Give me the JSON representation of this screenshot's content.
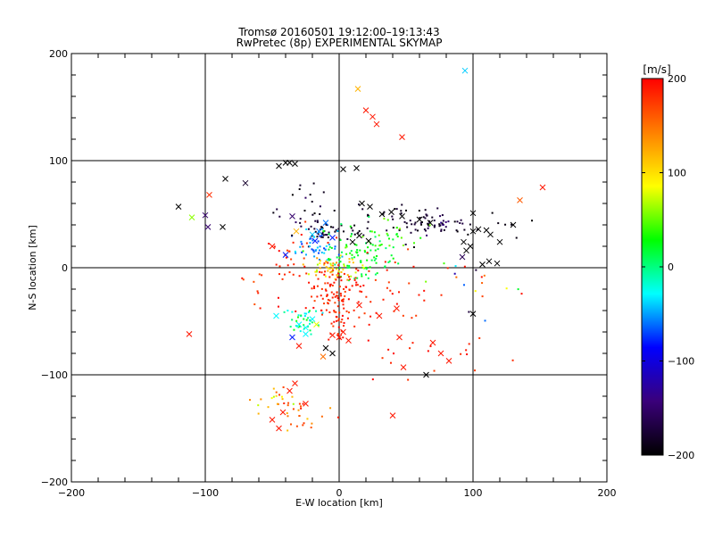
{
  "chart_data": {
    "type": "scatter",
    "title": "Tromsø 20160501 19:12:00–19:13:43",
    "subtitle": "RwPretec (8p) EXPERIMENTAL SKYMAP",
    "xlabel": "E-W location [km]",
    "ylabel": "N-S location [km]",
    "xlim": [
      -200,
      200
    ],
    "ylim": [
      -200,
      200
    ],
    "x_ticks": [
      -200,
      -100,
      0,
      100,
      200
    ],
    "y_ticks": [
      -200,
      -100,
      0,
      100,
      200
    ],
    "x_tick_labels": [
      "−200",
      "−100",
      "0",
      "100",
      "200"
    ],
    "y_tick_labels": [
      "−200",
      "−100",
      "0",
      "100",
      "200"
    ],
    "grid": true,
    "colorbar": {
      "label": "[m/s]",
      "range": [
        -200,
        200
      ],
      "ticks": [
        200,
        100,
        0,
        -100,
        -200
      ],
      "tick_labels": [
        "200",
        "100",
        "0",
        "−100",
        "−200"
      ],
      "colormap": [
        "#000000",
        "#3a007a",
        "#0000ff",
        "#00ffff",
        "#00ff00",
        "#ffff00",
        "#ff8000",
        "#ff0000"
      ]
    },
    "markers": {
      "x": "large-cross",
      "dot": "small-dot"
    },
    "crosses": [
      [
        94,
        184,
        -40
      ],
      [
        14,
        167,
        120
      ],
      [
        20,
        147,
        190
      ],
      [
        25,
        141,
        190
      ],
      [
        28,
        134,
        190
      ],
      [
        47,
        122,
        190
      ],
      [
        -40,
        98,
        -200
      ],
      [
        -37,
        98,
        -200
      ],
      [
        -45,
        95,
        -200
      ],
      [
        -33,
        97,
        -200
      ],
      [
        3,
        92,
        -200
      ],
      [
        13,
        93,
        -200
      ],
      [
        -85,
        83,
        -200
      ],
      [
        -70,
        79,
        -180
      ],
      [
        -97,
        68,
        180
      ],
      [
        -120,
        57,
        -200
      ],
      [
        -100,
        49,
        -150
      ],
      [
        -110,
        47,
        60
      ],
      [
        -98,
        38,
        -150
      ],
      [
        -87,
        38,
        -200
      ],
      [
        -35,
        48,
        -150
      ],
      [
        152,
        75,
        190
      ],
      [
        135,
        63,
        160
      ],
      [
        130,
        40,
        -200
      ],
      [
        100,
        51,
        -200
      ],
      [
        104,
        36,
        -200
      ],
      [
        100,
        34,
        -200
      ],
      [
        110,
        35,
        -200
      ],
      [
        113,
        31,
        -200
      ],
      [
        120,
        24,
        -200
      ],
      [
        93,
        24,
        -200
      ],
      [
        98,
        20,
        -200
      ],
      [
        95,
        16,
        -200
      ],
      [
        92,
        10,
        -160
      ],
      [
        112,
        6,
        -200
      ],
      [
        118,
        4,
        -200
      ],
      [
        107,
        3,
        -200
      ],
      [
        -50,
        20,
        190
      ],
      [
        -40,
        12,
        -80
      ],
      [
        -32,
        34,
        120
      ],
      [
        -20,
        31,
        -40
      ],
      [
        -15,
        34,
        -60
      ],
      [
        -18,
        25,
        -80
      ],
      [
        -5,
        28,
        -80
      ],
      [
        -10,
        42,
        -60
      ],
      [
        15,
        30,
        -200
      ],
      [
        22,
        25,
        -200
      ],
      [
        10,
        24,
        -200
      ],
      [
        17,
        60,
        -200
      ],
      [
        23,
        57,
        -200
      ],
      [
        32,
        50,
        -200
      ],
      [
        39,
        52,
        -200
      ],
      [
        47,
        48,
        -200
      ],
      [
        60,
        45,
        -200
      ],
      [
        68,
        42,
        -200
      ],
      [
        -47,
        -45,
        -30
      ],
      [
        -30,
        -53,
        -30
      ],
      [
        -25,
        -56,
        -30
      ],
      [
        -20,
        -48,
        -30
      ],
      [
        -17,
        -53,
        80
      ],
      [
        -35,
        -65,
        -80
      ],
      [
        -25,
        -62,
        -30
      ],
      [
        -30,
        -73,
        190
      ],
      [
        -12,
        -83,
        150
      ],
      [
        3,
        -60,
        190
      ],
      [
        -5,
        -63,
        190
      ],
      [
        7,
        -68,
        190
      ],
      [
        0,
        -65,
        190
      ],
      [
        15,
        -35,
        190
      ],
      [
        30,
        -45,
        190
      ],
      [
        43,
        -38,
        190
      ],
      [
        45,
        -65,
        190
      ],
      [
        70,
        -70,
        190
      ],
      [
        76,
        -80,
        190
      ],
      [
        82,
        -87,
        190
      ],
      [
        48,
        -93,
        190
      ],
      [
        65,
        -100,
        -200
      ],
      [
        100,
        -43,
        -200
      ],
      [
        -10,
        -75,
        -200
      ],
      [
        -5,
        -80,
        -200
      ],
      [
        -112,
        -62,
        190
      ],
      [
        -33,
        -108,
        190
      ],
      [
        -37,
        -115,
        190
      ],
      [
        -25,
        -127,
        190
      ],
      [
        -45,
        -150,
        190
      ],
      [
        -50,
        -142,
        190
      ],
      [
        -42,
        -135,
        190
      ],
      [
        40,
        -138,
        190
      ]
    ],
    "clusters": [
      {
        "cx": 45,
        "cy": 45,
        "sx": 18,
        "sy": 8,
        "n": 55,
        "vmin": -200,
        "vmax": -170
      },
      {
        "cx": 75,
        "cy": 40,
        "sx": 10,
        "sy": 4,
        "n": 30,
        "vmin": -200,
        "vmax": -130
      },
      {
        "cx": -8,
        "cy": 35,
        "sx": 10,
        "sy": 6,
        "n": 45,
        "vmin": -200,
        "vmax": -170
      },
      {
        "cx": 25,
        "cy": 25,
        "sx": 15,
        "sy": 8,
        "n": 60,
        "vmin": 0,
        "vmax": 60
      },
      {
        "cx": -18,
        "cy": 20,
        "sx": 10,
        "sy": 8,
        "n": 45,
        "vmin": -80,
        "vmax": -30
      },
      {
        "cx": 15,
        "cy": 5,
        "sx": 12,
        "sy": 10,
        "n": 60,
        "vmin": 0,
        "vmax": 40
      },
      {
        "cx": -5,
        "cy": 0,
        "sx": 10,
        "sy": 6,
        "n": 50,
        "vmin": 60,
        "vmax": 140
      },
      {
        "cx": -5,
        "cy": -20,
        "sx": 14,
        "sy": 12,
        "n": 90,
        "vmin": 170,
        "vmax": 200
      },
      {
        "cx": 0,
        "cy": -45,
        "sx": 5,
        "sy": 12,
        "n": 40,
        "vmin": 170,
        "vmax": 200
      },
      {
        "cx": -25,
        "cy": -50,
        "sx": 8,
        "sy": 6,
        "n": 35,
        "vmin": -40,
        "vmax": 40
      },
      {
        "cx": 40,
        "cy": -20,
        "sx": 25,
        "sy": 20,
        "n": 35,
        "vmin": 170,
        "vmax": 200
      },
      {
        "cx": 60,
        "cy": -80,
        "sx": 25,
        "sy": 15,
        "n": 20,
        "vmin": 170,
        "vmax": 200
      },
      {
        "cx": -30,
        "cy": -135,
        "sx": 15,
        "sy": 10,
        "n": 30,
        "vmin": 110,
        "vmax": 200
      },
      {
        "cx": -55,
        "cy": -125,
        "sx": 10,
        "sy": 8,
        "n": 12,
        "vmin": 60,
        "vmax": 140
      },
      {
        "cx": -25,
        "cy": 65,
        "sx": 15,
        "sy": 15,
        "n": 20,
        "vmin": -200,
        "vmax": -150
      },
      {
        "cx": -35,
        "cy": 10,
        "sx": 10,
        "sy": 15,
        "n": 25,
        "vmin": 170,
        "vmax": 200
      },
      {
        "cx": 95,
        "cy": -20,
        "sx": 15,
        "sy": 15,
        "n": 15,
        "vmin": -200,
        "vmax": 200
      },
      {
        "cx": -55,
        "cy": -20,
        "sx": 12,
        "sy": 20,
        "n": 12,
        "vmin": 160,
        "vmax": 200
      },
      {
        "cx": 110,
        "cy": 40,
        "sx": 15,
        "sy": 10,
        "n": 12,
        "vmin": -200,
        "vmax": -180
      }
    ]
  }
}
